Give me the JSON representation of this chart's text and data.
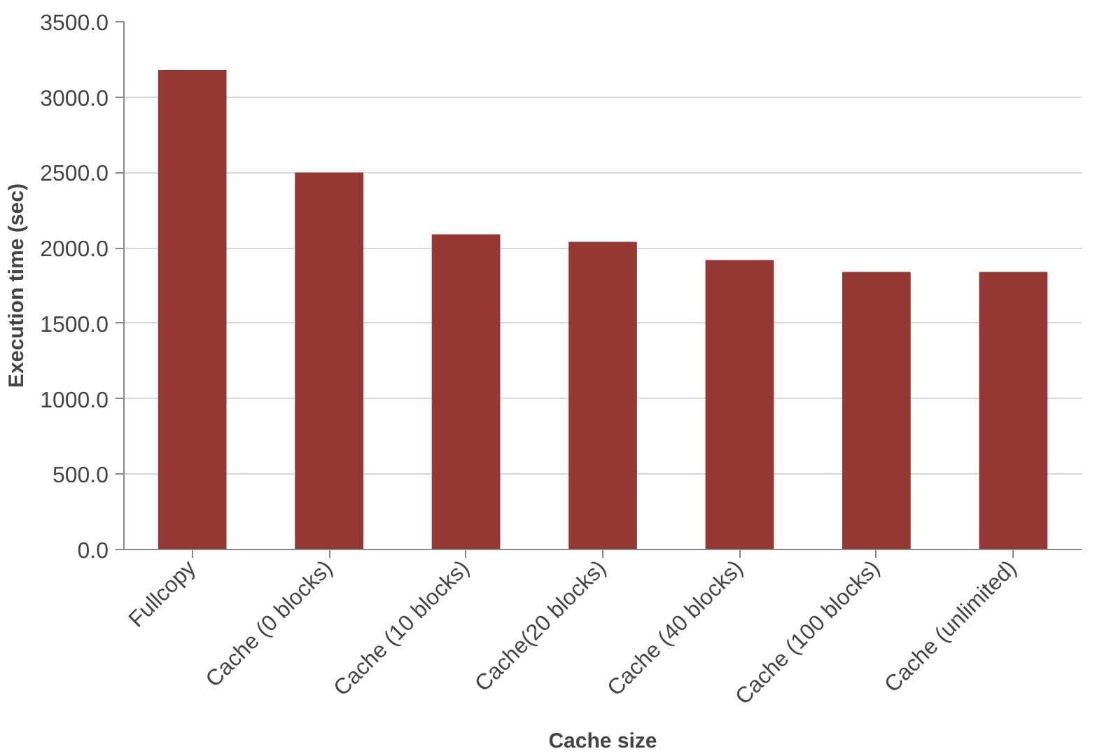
{
  "chart_data": {
    "type": "bar",
    "xlabel": "Cache size",
    "ylabel": "Execution time (sec)",
    "categories": [
      "Fullcopy",
      "Cache (0 blocks)",
      "Cache (10 blocks)",
      "Cache(20 blocks)",
      "Cache (40 blocks)",
      "Cache (100 blocks)",
      "Cache (unlimited)"
    ],
    "values": [
      3180,
      2500,
      2090,
      2040,
      1920,
      1840,
      1840
    ],
    "color": "#953735",
    "ylim": [
      0,
      3500
    ],
    "yticks": [
      {
        "value": 0,
        "label": "0.0"
      },
      {
        "value": 500,
        "label": "500.0"
      },
      {
        "value": 1000,
        "label": "1000.0"
      },
      {
        "value": 1500,
        "label": "1500.0"
      },
      {
        "value": 2000,
        "label": "2000.0"
      },
      {
        "value": 2500,
        "label": "2500.0"
      },
      {
        "value": 3000,
        "label": "3000.0"
      },
      {
        "value": 3500,
        "label": "3500.0"
      }
    ],
    "grid": "y"
  }
}
